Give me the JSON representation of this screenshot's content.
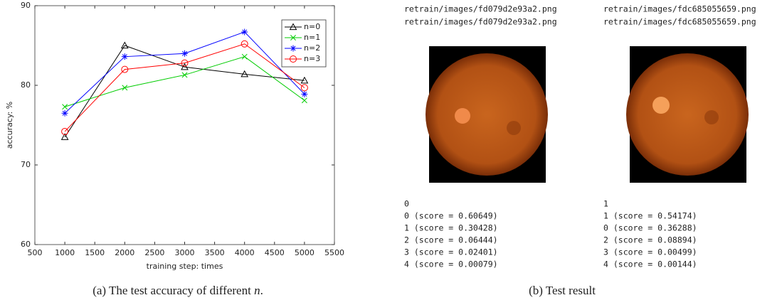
{
  "chart_data": {
    "type": "line",
    "xlabel": "training step: times",
    "ylabel": "accuracy: %",
    "x": [
      1000,
      2000,
      3000,
      4000,
      5000
    ],
    "series": [
      {
        "name": "n=0",
        "color": "#000000",
        "marker": "triangle",
        "values": [
          73.5,
          85.0,
          82.3,
          81.4,
          80.6
        ]
      },
      {
        "name": "n=1",
        "color": "#00cc00",
        "marker": "x",
        "values": [
          77.3,
          79.7,
          81.3,
          83.6,
          78.1
        ]
      },
      {
        "name": "n=2",
        "color": "#0000ff",
        "marker": "asterisk",
        "values": [
          76.5,
          83.6,
          84.0,
          86.7,
          78.9
        ]
      },
      {
        "name": "n=3",
        "color": "#ff0000",
        "marker": "circle",
        "values": [
          74.2,
          82.0,
          82.8,
          85.2,
          79.7
        ]
      }
    ],
    "xlim": [
      500,
      5500
    ],
    "xticks": [
      500,
      1000,
      1500,
      2000,
      2500,
      3000,
      3500,
      4000,
      4500,
      5000,
      5500
    ],
    "ylim": [
      60,
      90
    ],
    "yticks": [
      60,
      70,
      80,
      90
    ],
    "legend": "upper right"
  },
  "caption_a": {
    "prefix": "(a) The test accuracy of different ",
    "variable": "n",
    "suffix": "."
  },
  "caption_b": "(b) Test result",
  "results": [
    {
      "paths": [
        "retrain/images/fd079d2e93a2.png",
        "retrain/images/fd079d2e93a2.png"
      ],
      "prediction": "0",
      "scores": [
        "0 (score = 0.60649)",
        "1 (score = 0.30428)",
        "2 (score = 0.06444)",
        "3 (score = 0.02401)",
        "4 (score = 0.00079)"
      ]
    },
    {
      "paths": [
        "retrain/images/fdc685055659.png",
        "retrain/images/fdc685055659.png"
      ],
      "prediction": "1",
      "scores": [
        "1 (score = 0.54174)",
        "0 (score = 0.36288)",
        "2 (score = 0.08894)",
        "3 (score = 0.00499)",
        "4 (score = 0.00144)"
      ]
    }
  ]
}
